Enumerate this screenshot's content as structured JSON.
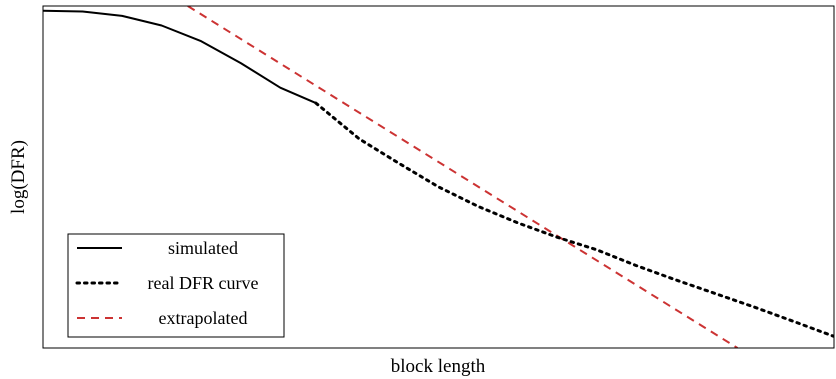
{
  "chart_data": {
    "type": "line",
    "xlabel": "block length",
    "ylabel": "log(DFR)",
    "xlim": [
      0,
      100
    ],
    "ylim": [
      0,
      100
    ],
    "x_ticks": [],
    "y_ticks": [],
    "grid": false,
    "legend_position": "bottom-left",
    "series": [
      {
        "name": "simulated",
        "style": "solid",
        "color": "#000000",
        "x": [
          0,
          5,
          10,
          15,
          20,
          25,
          30,
          34.5
        ],
        "y": [
          98.6,
          98.4,
          97.1,
          94.3,
          89.7,
          83.3,
          76.1,
          71.6
        ]
      },
      {
        "name": "real DFR curve",
        "style": "dotted",
        "color": "#000000",
        "x": [
          34.5,
          40,
          45,
          50,
          55,
          60,
          65,
          70,
          75,
          80,
          85,
          90,
          95,
          100
        ],
        "y": [
          71.6,
          61.1,
          54.0,
          47.1,
          41.4,
          36.6,
          32.4,
          28.7,
          24.1,
          19.9,
          15.9,
          11.9,
          7.7,
          3.4
        ]
      },
      {
        "name": "extrapolated",
        "style": "dashed",
        "color": "#cc3333",
        "x": [
          18.3,
          87.8
        ],
        "y": [
          100,
          0
        ]
      }
    ]
  }
}
